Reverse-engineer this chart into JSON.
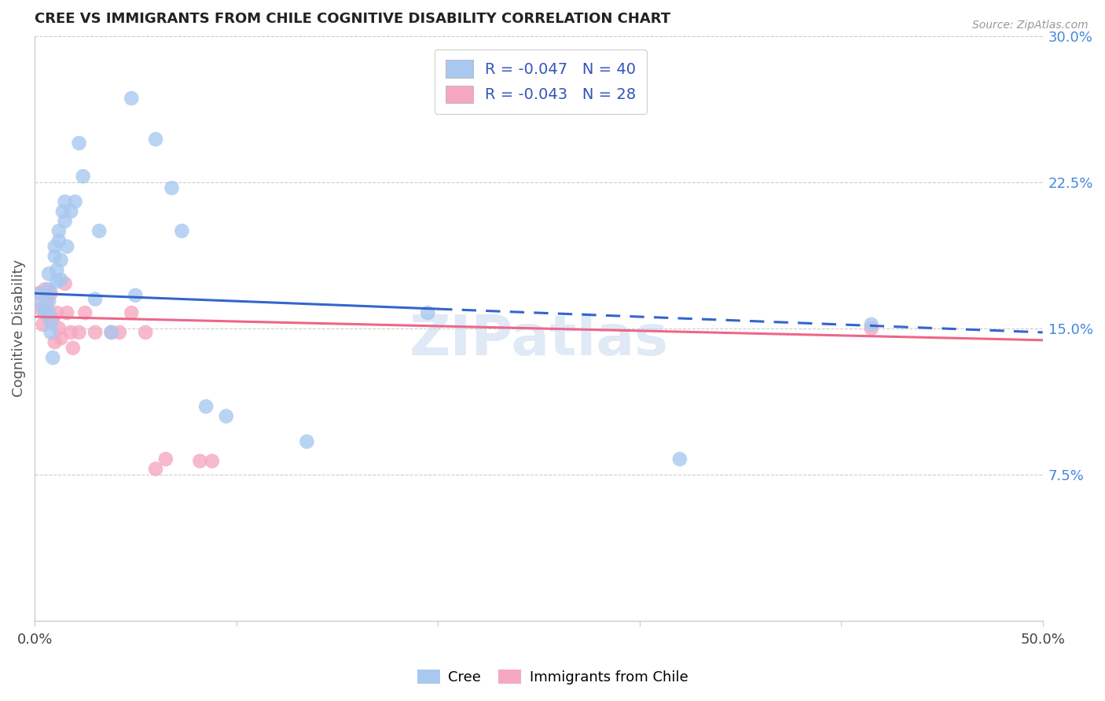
{
  "title": "CREE VS IMMIGRANTS FROM CHILE COGNITIVE DISABILITY CORRELATION CHART",
  "source": "Source: ZipAtlas.com",
  "ylabel": "Cognitive Disability",
  "xlim": [
    0.0,
    0.5
  ],
  "ylim": [
    0.0,
    0.3
  ],
  "xtick_positions": [
    0.0,
    0.1,
    0.2,
    0.3,
    0.4,
    0.5
  ],
  "xtick_labels": [
    "0.0%",
    "",
    "",
    "",
    "",
    "50.0%"
  ],
  "ytick_positions": [
    0.3,
    0.225,
    0.15,
    0.075
  ],
  "ytick_labels": [
    "30.0%",
    "22.5%",
    "15.0%",
    "7.5%"
  ],
  "cree_color": "#A8C8F0",
  "chile_color": "#F5A8C0",
  "cree_line_color": "#3366CC",
  "chile_line_color": "#EE6688",
  "cree_line_solid_end": 0.2,
  "cree_line_x0": 0.0,
  "cree_line_y0": 0.168,
  "cree_line_x1": 0.5,
  "cree_line_y1": 0.148,
  "chile_line_x0": 0.0,
  "chile_line_y0": 0.156,
  "chile_line_x1": 0.5,
  "chile_line_y1": 0.144,
  "cree_x": [
    0.003,
    0.003,
    0.005,
    0.007,
    0.007,
    0.007,
    0.007,
    0.008,
    0.008,
    0.009,
    0.01,
    0.01,
    0.011,
    0.011,
    0.012,
    0.012,
    0.013,
    0.013,
    0.014,
    0.015,
    0.015,
    0.016,
    0.018,
    0.02,
    0.022,
    0.024,
    0.03,
    0.032,
    0.038,
    0.048,
    0.05,
    0.06,
    0.068,
    0.073,
    0.085,
    0.095,
    0.135,
    0.195,
    0.32,
    0.415
  ],
  "cree_y": [
    0.168,
    0.162,
    0.158,
    0.178,
    0.17,
    0.164,
    0.158,
    0.153,
    0.148,
    0.135,
    0.192,
    0.187,
    0.18,
    0.174,
    0.2,
    0.195,
    0.185,
    0.175,
    0.21,
    0.215,
    0.205,
    0.192,
    0.21,
    0.215,
    0.245,
    0.228,
    0.165,
    0.2,
    0.148,
    0.268,
    0.167,
    0.247,
    0.222,
    0.2,
    0.11,
    0.105,
    0.092,
    0.158,
    0.083,
    0.152
  ],
  "chile_x": [
    0.002,
    0.003,
    0.004,
    0.005,
    0.006,
    0.007,
    0.008,
    0.009,
    0.01,
    0.011,
    0.012,
    0.013,
    0.015,
    0.016,
    0.018,
    0.019,
    0.022,
    0.025,
    0.03,
    0.038,
    0.042,
    0.048,
    0.055,
    0.06,
    0.065,
    0.082,
    0.088,
    0.415
  ],
  "chile_y": [
    0.168,
    0.16,
    0.152,
    0.17,
    0.163,
    0.156,
    0.168,
    0.155,
    0.143,
    0.158,
    0.15,
    0.145,
    0.173,
    0.158,
    0.148,
    0.14,
    0.148,
    0.158,
    0.148,
    0.148,
    0.148,
    0.158,
    0.148,
    0.078,
    0.083,
    0.082,
    0.082,
    0.15
  ]
}
